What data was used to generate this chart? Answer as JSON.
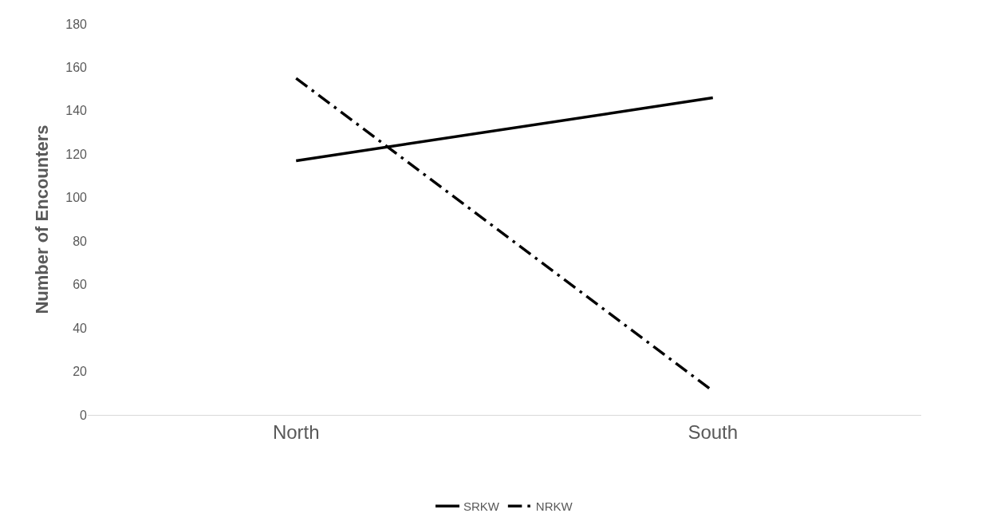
{
  "chart_data": {
    "type": "line",
    "ylabel": "Number of Encounters",
    "categories": [
      "North",
      "South"
    ],
    "series": [
      {
        "name": "SRKW",
        "color": "#000000",
        "values": [
          117,
          146
        ],
        "line_style": "solid"
      },
      {
        "name": "NRKW",
        "color": "#000000",
        "values": [
          155,
          11
        ],
        "line_style": "dashdot"
      }
    ],
    "ylim": [
      0,
      180
    ],
    "yticks": [
      0,
      20,
      40,
      60,
      80,
      100,
      120,
      140,
      160,
      180
    ],
    "grid": false,
    "legend": "bottom",
    "marker": "none"
  }
}
